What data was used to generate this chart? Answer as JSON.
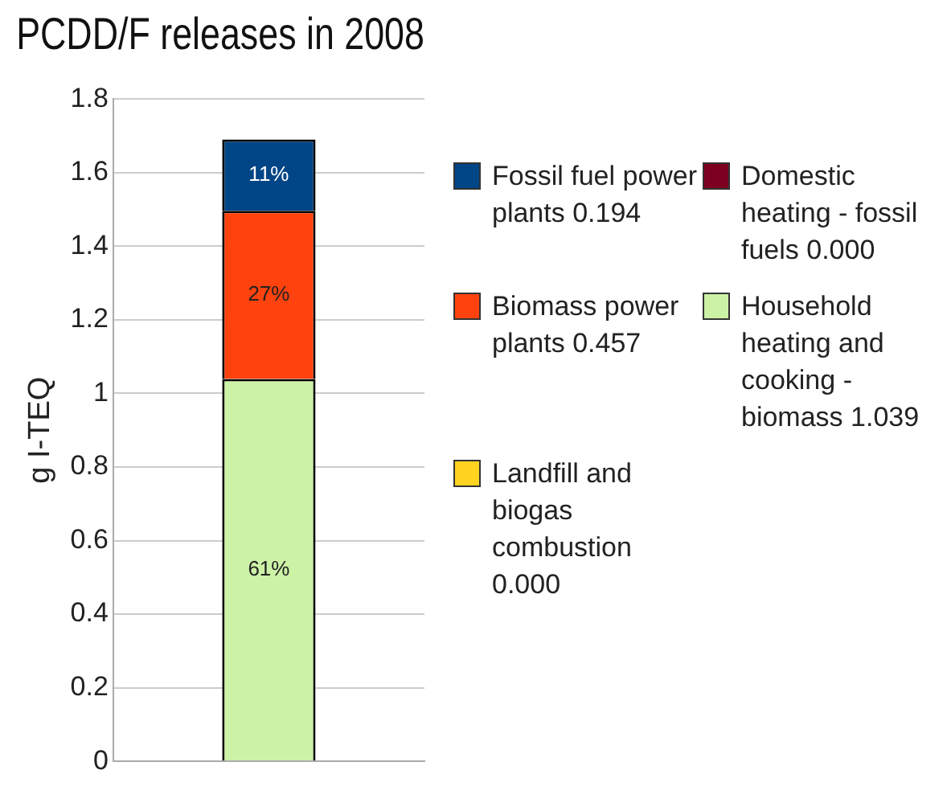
{
  "chart_data": {
    "type": "bar",
    "title": "PCDD/F releases in 2008",
    "ylabel": "g I-TEQ",
    "categories": [
      null
    ],
    "stacked": true,
    "series": [
      {
        "name": "Household heating and cooking - biomass 1.039",
        "color": "#ccf2a6",
        "values": [
          1.039
        ]
      },
      {
        "name": "Domestic heating - fossil fuels 0.000",
        "color": "#7e0021",
        "values": [
          0
        ]
      },
      {
        "name": "Landfill and biogas combustion 0.000",
        "color": "#ffd320",
        "values": [
          0
        ]
      },
      {
        "name": "Biomass power plants 0.457",
        "color": "#ff420e",
        "values": [
          0.457
        ]
      },
      {
        "name": "Fossil fuel power plants 0.194",
        "color": "#004586",
        "values": [
          0.194
        ]
      }
    ],
    "annotations": [
      "61%",
      "27%",
      "11%"
    ],
    "ylim": [
      0,
      1.8
    ],
    "yticks": [
      0,
      0.2,
      0.4,
      0.6,
      0.8,
      1,
      1.2,
      1.4,
      1.6,
      1.8
    ],
    "grid": "y",
    "legend": "right"
  }
}
